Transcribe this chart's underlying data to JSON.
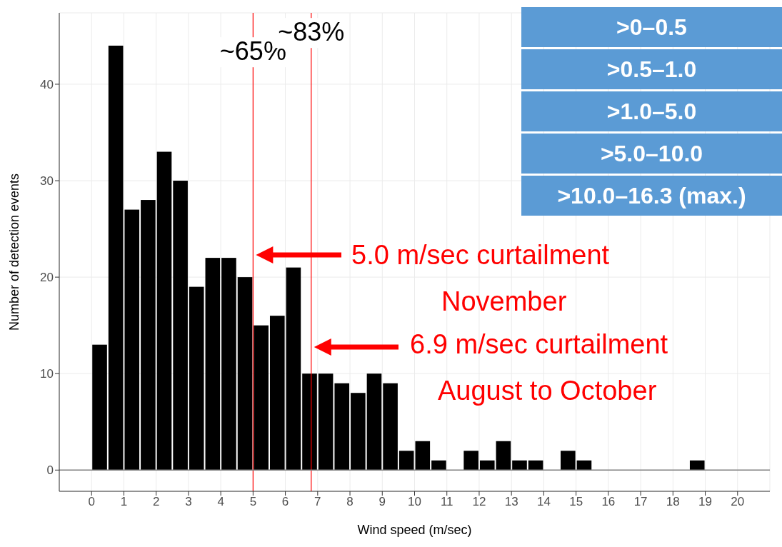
{
  "chart_data": {
    "type": "histogram",
    "xlabel": "Wind speed (m/sec)",
    "ylabel": "Number of detection events",
    "bins": [
      0,
      0.5,
      1,
      1.5,
      2,
      2.5,
      3,
      3.5,
      4,
      4.5,
      5,
      5.5,
      6,
      6.5,
      7,
      7.5,
      8,
      8.5,
      9,
      9.5,
      10,
      10.5,
      11,
      11.5,
      12,
      12.5,
      13,
      13.5,
      14,
      14.5,
      15,
      15.5,
      16,
      16.5,
      17,
      17.5,
      18,
      18.5,
      19
    ],
    "values": [
      13,
      44,
      27,
      28,
      33,
      30,
      19,
      22,
      22,
      20,
      15,
      16,
      21,
      10,
      10,
      9,
      8,
      10,
      9,
      2,
      3,
      1,
      0,
      2,
      1,
      3,
      1,
      1,
      0,
      2,
      1,
      0,
      0,
      0,
      0,
      0,
      0,
      1
    ],
    "color": "#000000",
    "xlim": [
      -1,
      21
    ],
    "xticks": [
      0,
      1,
      2,
      3,
      4,
      5,
      6,
      7,
      8,
      9,
      10,
      11,
      12,
      13,
      14,
      15,
      16,
      17,
      18,
      19,
      20
    ],
    "ylim": [
      -2.2,
      47.4
    ],
    "yticks": [
      0,
      10,
      20,
      30,
      40
    ],
    "grid": true,
    "legend": false,
    "ref_lines": [
      {
        "axis": "x",
        "value": 5,
        "color": "#ff0000"
      },
      {
        "axis": "x",
        "value": 6.8,
        "color": "#ff0000"
      },
      {
        "axis": "y",
        "value": 0,
        "color": "#808080"
      }
    ],
    "annotations": [
      {
        "text": "~65%",
        "x": 5,
        "y": 42.5
      },
      {
        "text": "~83%",
        "x": 6.8,
        "y": 44.5
      },
      ">0–0.5",
      ">0.5–1.0",
      ">1.0–5.0",
      ">5.0–10.0",
      ">10.0–16.3 (max.)",
      "5.0 m/sec curtailment",
      "November",
      "6.9 m/sec curtailment",
      "August to October"
    ]
  }
}
